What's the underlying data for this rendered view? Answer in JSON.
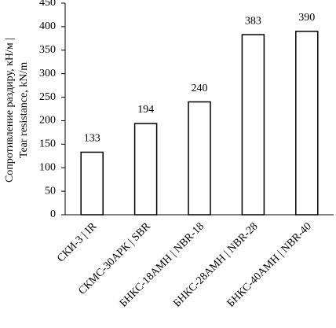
{
  "chart_data": {
    "type": "bar",
    "y_label": [
      "Сопротивление раздиру, кН/м |",
      "Tear resistance, kN/m"
    ],
    "categories": [
      "СКИ-3 | IR",
      "СКМС-30АРК | SBR",
      "БНКС-18АМН | NBR-18",
      "БНКС-28АМН | NBR-28",
      "БНКС-40АМН | NBR-40"
    ],
    "values": [
      133,
      194,
      240,
      383,
      390
    ],
    "color": "#ffffff",
    "edge_color": "#000000",
    "ylim": [
      0,
      450
    ],
    "yticks": [
      0,
      50,
      100,
      150,
      200,
      250,
      300,
      350,
      400,
      450
    ],
    "grid": false
  }
}
